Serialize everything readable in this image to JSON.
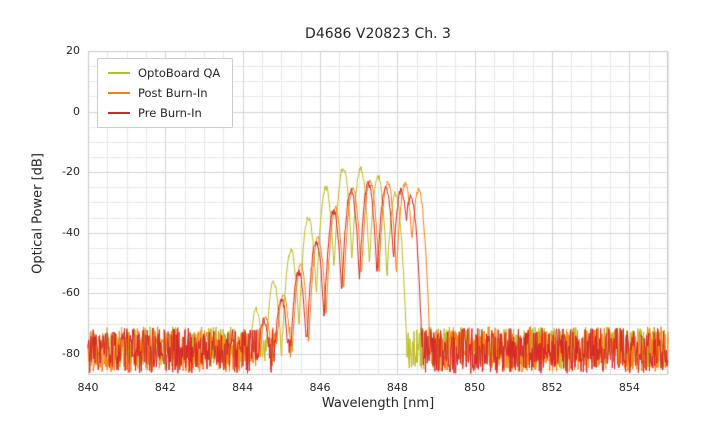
{
  "chart_data": {
    "type": "line",
    "title": "D4686 V20823 Ch. 3",
    "xlabel": "Wavelength [nm]",
    "ylabel": "Optical Power [dB]",
    "xlim": [
      840,
      855
    ],
    "ylim": [
      -87,
      20
    ],
    "xticks": [
      840,
      842,
      844,
      846,
      848,
      850,
      852,
      854
    ],
    "yticks": [
      20,
      0,
      -20,
      -40,
      -60,
      -80
    ],
    "minor_x_step": 0.5,
    "minor_y_step": 5,
    "grid": true,
    "legend_position": "upper-left",
    "colors": {
      "background": "#ffffff",
      "grid_major": "#d3d3d3",
      "grid_minor": "#e7e7e7",
      "frame": "#cccccc",
      "text": "#262626"
    },
    "series": [
      {
        "name": "OptoBoard QA",
        "color": "#bcbd22",
        "seed": 11,
        "noise_floor_db": -78,
        "noise_amplitude_db": 7,
        "mode_sharpness_db_per_nm2": 600,
        "mode_centers_nm": [
          844.35,
          844.8,
          845.25,
          845.7,
          846.15,
          846.6,
          847.05,
          847.5,
          847.95
        ],
        "mode_peaks_db": [
          -65,
          -56,
          -46,
          -35,
          -25,
          -18.5,
          -19,
          -21.5,
          -27
        ]
      },
      {
        "name": "Post Burn-In",
        "color": "#ff7f0e",
        "seed": 22,
        "noise_floor_db": -78.5,
        "noise_amplitude_db": 7.5,
        "mode_sharpness_db_per_nm2": 600,
        "mode_centers_nm": [
          844.6,
          845.05,
          845.5,
          845.95,
          846.4,
          846.85,
          847.3,
          847.75,
          848.2,
          848.55
        ],
        "mode_peaks_db": [
          -68,
          -60,
          -51,
          -42,
          -32,
          -25.5,
          -23,
          -23,
          -24,
          -26
        ]
      },
      {
        "name": "Pre Burn-In",
        "color": "#d62728",
        "seed": 33,
        "noise_floor_db": -79,
        "noise_amplitude_db": 7.5,
        "mode_sharpness_db_per_nm2": 600,
        "mode_centers_nm": [
          844.55,
          845.0,
          845.45,
          845.9,
          846.35,
          846.8,
          847.25,
          847.7,
          848.1,
          848.35
        ],
        "mode_peaks_db": [
          -69,
          -62,
          -53,
          -43,
          -33,
          -26,
          -24,
          -25,
          -26,
          -28
        ]
      }
    ]
  }
}
